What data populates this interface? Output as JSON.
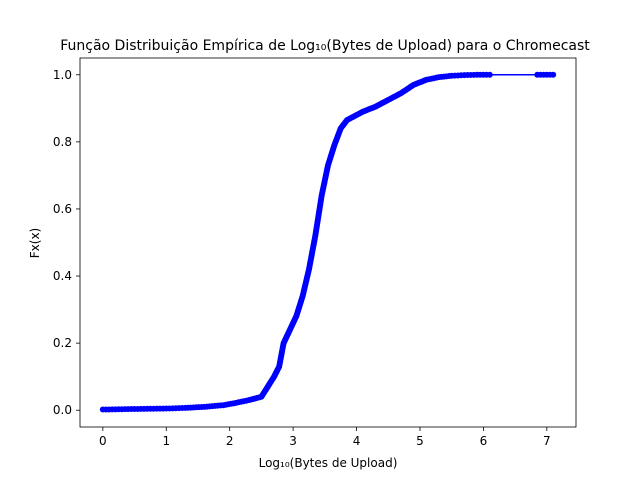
{
  "chart_data": {
    "type": "line",
    "title": "Função Distribuição Empírica de Log₁₀(Bytes de Upload) para o Chromecast",
    "xlabel": "Log₁₀(Bytes de Upload)",
    "ylabel": "Fx(x)",
    "xlim": [
      -0.36,
      7.46
    ],
    "ylim": [
      -0.05,
      1.05
    ],
    "xticks": [
      0,
      1,
      2,
      3,
      4,
      5,
      6,
      7
    ],
    "yticks": [
      0.0,
      0.2,
      0.4,
      0.6,
      0.8,
      1.0
    ],
    "xtick_labels": [
      "0",
      "1",
      "2",
      "3",
      "4",
      "5",
      "6",
      "7"
    ],
    "ytick_labels": [
      "0.0",
      "0.2",
      "0.4",
      "0.6",
      "0.8",
      "1.0"
    ],
    "grid": false,
    "series": [
      {
        "color": "#0000ff",
        "marker": "circle",
        "x": [
          0.0,
          0.3,
          0.6,
          1.0,
          1.3,
          1.6,
          1.9,
          2.1,
          2.3,
          2.5,
          2.6,
          2.7,
          2.78,
          2.85,
          2.95,
          3.05,
          3.15,
          3.25,
          3.35,
          3.45,
          3.55,
          3.65,
          3.75,
          3.85,
          3.95,
          4.1,
          4.3,
          4.5,
          4.7,
          4.9,
          5.1,
          5.3,
          5.5,
          5.7,
          5.9,
          6.1,
          6.85,
          7.0,
          7.1
        ],
        "y": [
          0.002,
          0.003,
          0.004,
          0.005,
          0.007,
          0.01,
          0.015,
          0.022,
          0.03,
          0.04,
          0.07,
          0.1,
          0.13,
          0.2,
          0.24,
          0.28,
          0.34,
          0.42,
          0.52,
          0.64,
          0.73,
          0.79,
          0.84,
          0.865,
          0.875,
          0.89,
          0.905,
          0.925,
          0.945,
          0.97,
          0.985,
          0.993,
          0.997,
          0.999,
          1.0,
          1.0,
          1.0,
          1.0,
          1.0
        ]
      }
    ]
  }
}
